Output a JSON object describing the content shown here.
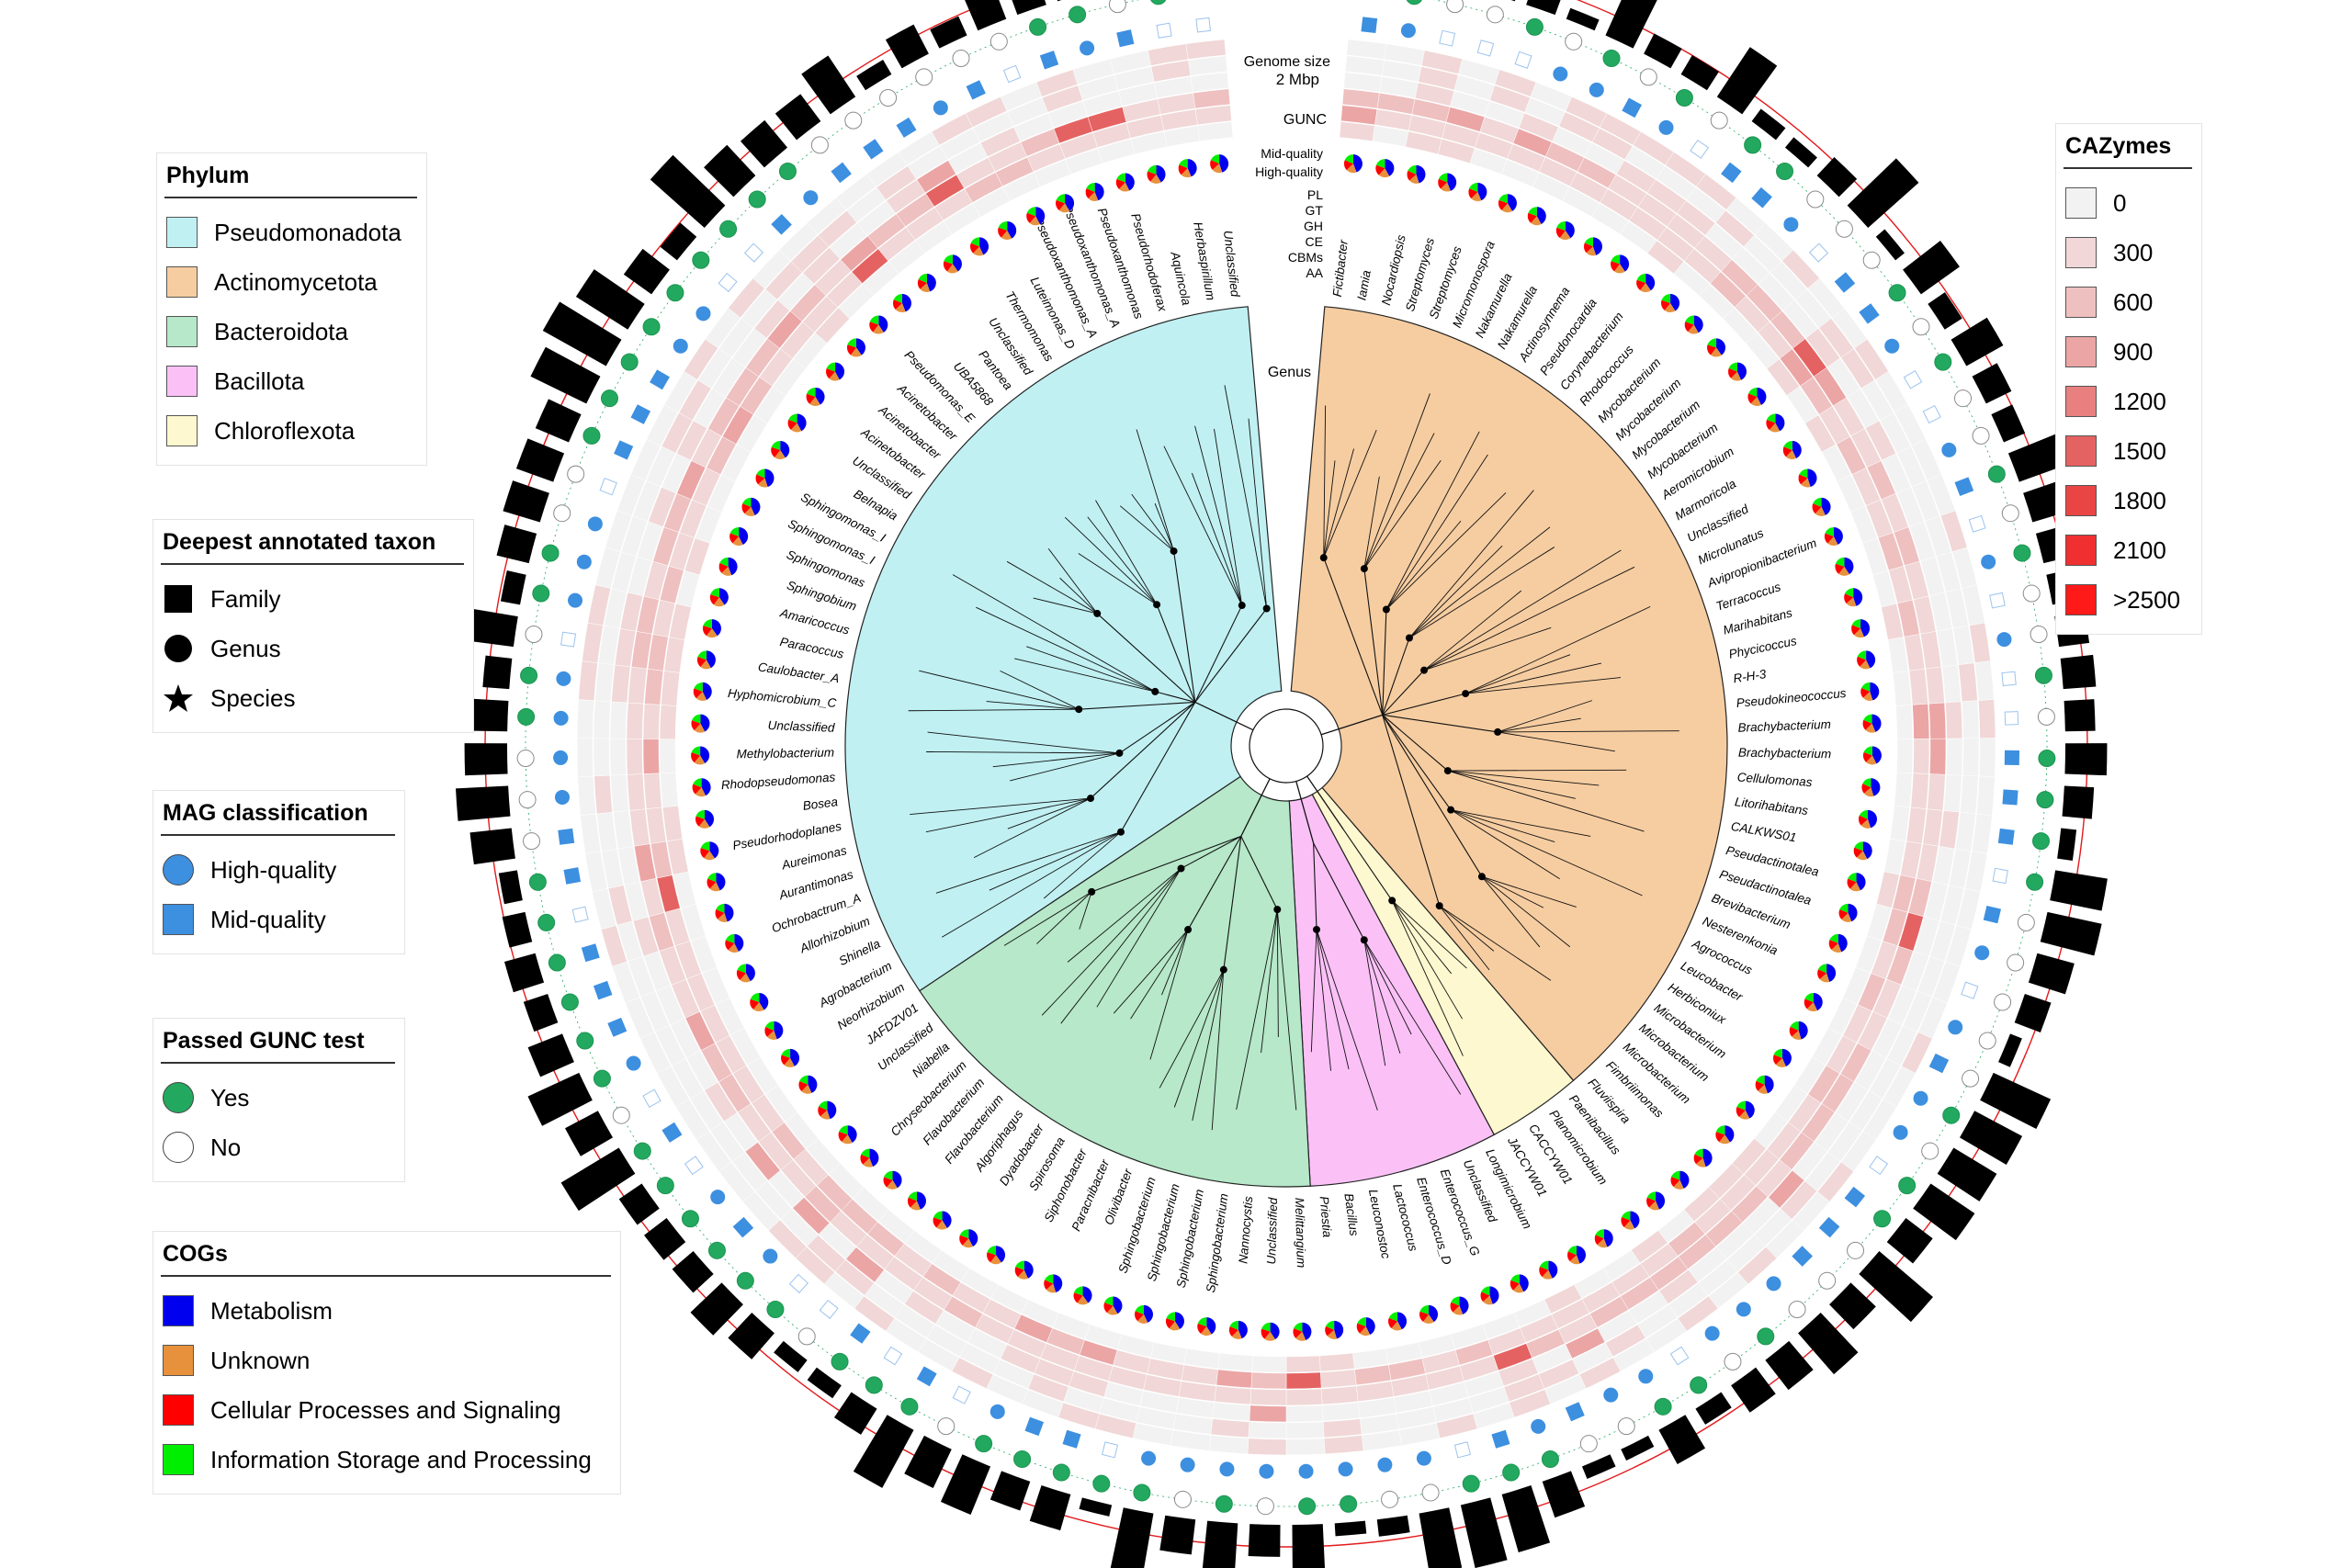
{
  "figure": {
    "ring_labels": {
      "genome_size": "Genome size",
      "genome_scale": "2 Mbp",
      "gunc": "GUNC",
      "mid_quality": "Mid-quality",
      "high_quality": "High-quality",
      "pl": "PL",
      "gt": "GT",
      "gh": "GH",
      "ce": "CE",
      "cbms": "CBMs",
      "aa": "AA",
      "genus": "Genus"
    },
    "genera": {
      "pseudomonadota": [
        "Neorhizobium",
        "Agrobacterium",
        "Shinella",
        "Allorhizobium",
        "Ochrobactrum_A",
        "Aurantimonas",
        "Aureimonas",
        "Pseudorhodoplanes",
        "Bosea",
        "Rhodopseudomonas",
        "Methylobacterium",
        "Unclassified",
        "Hyphomicrobium_C",
        "Caulobacter_A",
        "Paracoccus",
        "Amaricoccus",
        "Sphingobium",
        "Sphingomonas",
        "Sphingomonas_I",
        "Sphingomonas_I",
        "Belnapia",
        "Unclassified",
        "Acinetobacter",
        "Acinetobacter",
        "Acinetobacter",
        "Pseudomonas_E",
        "UBA5868",
        "Pantoea",
        "Unclassified",
        "Thermomonas",
        "Luteimonas_D",
        "Pseudoxanthomonas_A",
        "Pseudoxanthomonas_A",
        "Pseudoxanthomonas",
        "Pseudorhodoferax",
        "Aquincola",
        "Herbaspirillum",
        "Unclassified"
      ],
      "bacteroidota": [
        "Melittangium",
        "Unclassified",
        "Nannocystis",
        "Sphingobacterium",
        "Sphingobacterium",
        "Sphingobacterium",
        "Sphingobacterium",
        "Olivibacter",
        "Paracnibacter",
        "Siphonobacter",
        "Spirosoma",
        "Dyadobacter",
        "Algoriphagus",
        "Flavobacterium",
        "Flavobacterium",
        "Chryseobacterium",
        "Niabella",
        "Unclassified",
        "JAFDZV01"
      ],
      "bacillota": [
        "Longimicrobium",
        "Unclassified",
        "Enterococcus_G",
        "Enterococcus_D",
        "Lactococcus",
        "Leuconostoc",
        "Bacillus",
        "Priestia"
      ],
      "chloroflexota": [
        "Paenibacillus",
        "Planomicrobium",
        "CACCYW01",
        "JACCYW01"
      ],
      "actinomycetota": [
        "Fictibacter",
        "Iamia",
        "Nocardiopsis",
        "Streptomyces",
        "Streptomyces",
        "Micromonospora",
        "Nakamurella",
        "Nakamurella",
        "Actinosynnema",
        "Pseudonocardia",
        "Corynebacterium",
        "Rhodococcus",
        "Mycobacterium",
        "Mycobacterium",
        "Mycobacterium",
        "Mycobacterium",
        "Aeromicrobium",
        "Marmoricola",
        "Unclassified",
        "Microlunatus",
        "Avipropionibacterium",
        "Terracoccus",
        "Marihabitans",
        "Phycicoccus",
        "R-H-3",
        "Pseudokineococcus",
        "Brachybacterium",
        "Brachybacterium",
        "Cellulomonas",
        "Litorihabitans",
        "CALKWS01",
        "Pseudactinotalea",
        "Pseudactinotalea",
        "Brevibacterium",
        "Nesterenkonia",
        "Agrococcus",
        "Leucobacter",
        "Herbiconiux",
        "Microbacterium",
        "Microbacterium",
        "Microbacterium",
        "Fimbriimonas",
        "Fluviispira"
      ]
    }
  },
  "legend_phylum": {
    "title": "Phylum",
    "items": [
      {
        "label": "Pseudomonadota",
        "color": "#c0f0f2"
      },
      {
        "label": "Actinomycetota",
        "color": "#f6cda1"
      },
      {
        "label": "Bacteroidota",
        "color": "#b6e8c9"
      },
      {
        "label": "Bacillota",
        "color": "#fbc1f7"
      },
      {
        "label": "Chloroflexota",
        "color": "#fdf8cf"
      }
    ]
  },
  "legend_taxon": {
    "title": "Deepest annotated taxon",
    "items": [
      {
        "label": "Family",
        "icon": "square-icon"
      },
      {
        "label": "Genus",
        "icon": "circle-icon"
      },
      {
        "label": "Species",
        "icon": "star-icon"
      }
    ]
  },
  "legend_mag": {
    "title": "MAG classification",
    "items": [
      {
        "label": "High-quality",
        "color": "#3d8fe0"
      },
      {
        "label": "Mid-quality",
        "color": "#3d8fe0"
      }
    ]
  },
  "legend_gunc": {
    "title": "Passed GUNC test",
    "items": [
      {
        "label": "Yes",
        "color": "#22a95f"
      },
      {
        "label": "No",
        "color": "#ffffff"
      }
    ]
  },
  "legend_cogs": {
    "title": "COGs",
    "items": [
      {
        "label": "Metabolism",
        "color": "#0000ee"
      },
      {
        "label": "Unknown",
        "color": "#e8913c"
      },
      {
        "label": "Cellular Processes and Signaling",
        "color": "#ff0000"
      },
      {
        "label": "Information Storage and Processing",
        "color": "#00ee00"
      }
    ]
  },
  "legend_cazymes": {
    "title": "CAZymes",
    "items": [
      {
        "label": "0",
        "color": "#f2f2f2"
      },
      {
        "label": "300",
        "color": "#f1d7d7"
      },
      {
        "label": "600",
        "color": "#efc0c0"
      },
      {
        "label": "900",
        "color": "#eba5a5"
      },
      {
        "label": "1200",
        "color": "#e88080"
      },
      {
        "label": "1500",
        "color": "#e56262"
      },
      {
        "label": "1800",
        "color": "#ea4545"
      },
      {
        "label": "2100",
        "color": "#f03030"
      },
      {
        "label": ">2500",
        "color": "#ff1a1a"
      }
    ]
  }
}
